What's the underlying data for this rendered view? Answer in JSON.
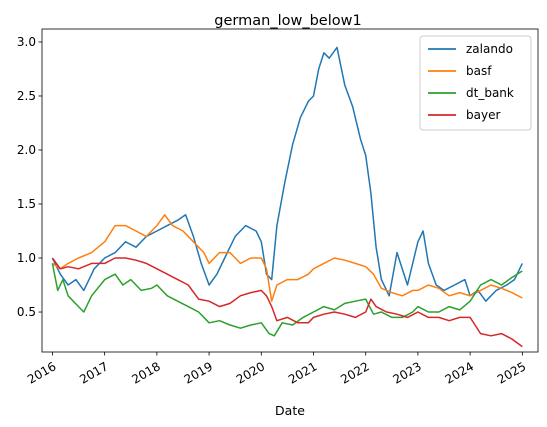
{
  "chart_data": {
    "type": "line",
    "title": "german_low_below1",
    "xlabel": "Date",
    "ylabel": "",
    "xlim": [
      2015.8,
      2025.3
    ],
    "ylim": [
      0.13,
      3.12
    ],
    "x_ticks": [
      2016,
      2017,
      2018,
      2019,
      2020,
      2021,
      2022,
      2023,
      2024,
      2025
    ],
    "x_tick_labels": [
      "2016",
      "2017",
      "2018",
      "2019",
      "2020",
      "2021",
      "2022",
      "2023",
      "2024",
      "2025"
    ],
    "y_ticks": [
      0.5,
      1.0,
      1.5,
      2.0,
      2.5,
      3.0
    ],
    "y_tick_labels": [
      "0.5",
      "1.0",
      "1.5",
      "2.0",
      "2.5",
      "3.0"
    ],
    "grid": false,
    "legend_position": "top-right",
    "series": [
      {
        "name": "zalando",
        "color": "#1f77b4",
        "x": [
          2016.0,
          2016.15,
          2016.3,
          2016.45,
          2016.6,
          2016.8,
          2017.0,
          2017.2,
          2017.4,
          2017.6,
          2017.8,
          2018.0,
          2018.2,
          2018.4,
          2018.55,
          2018.7,
          2018.85,
          2019.0,
          2019.15,
          2019.3,
          2019.5,
          2019.7,
          2019.9,
          2020.0,
          2020.1,
          2020.2,
          2020.3,
          2020.45,
          2020.6,
          2020.75,
          2020.9,
          2021.0,
          2021.1,
          2021.2,
          2021.3,
          2021.45,
          2021.6,
          2021.75,
          2021.9,
          2022.0,
          2022.1,
          2022.2,
          2022.3,
          2022.45,
          2022.6,
          2022.8,
          2023.0,
          2023.1,
          2023.2,
          2023.35,
          2023.5,
          2023.7,
          2023.9,
          2024.0,
          2024.15,
          2024.3,
          2024.5,
          2024.7,
          2024.85,
          2024.95,
          2025.0
        ],
        "values": [
          1.0,
          0.85,
          0.75,
          0.8,
          0.7,
          0.9,
          1.0,
          1.05,
          1.15,
          1.1,
          1.2,
          1.25,
          1.3,
          1.35,
          1.4,
          1.2,
          0.95,
          0.75,
          0.85,
          1.0,
          1.2,
          1.3,
          1.25,
          1.15,
          0.85,
          0.8,
          1.3,
          1.7,
          2.05,
          2.3,
          2.45,
          2.5,
          2.75,
          2.9,
          2.85,
          2.95,
          2.6,
          2.4,
          2.1,
          1.95,
          1.6,
          1.1,
          0.8,
          0.65,
          1.05,
          0.75,
          1.15,
          1.25,
          0.95,
          0.75,
          0.7,
          0.75,
          0.8,
          0.65,
          0.7,
          0.6,
          0.7,
          0.75,
          0.8,
          0.9,
          0.95
        ]
      },
      {
        "name": "basf",
        "color": "#ff7f0e",
        "x": [
          2016.0,
          2016.15,
          2016.3,
          2016.5,
          2016.75,
          2017.0,
          2017.2,
          2017.4,
          2017.6,
          2017.8,
          2018.0,
          2018.15,
          2018.3,
          2018.5,
          2018.7,
          2018.9,
          2019.0,
          2019.2,
          2019.4,
          2019.6,
          2019.8,
          2020.0,
          2020.1,
          2020.2,
          2020.3,
          2020.5,
          2020.7,
          2020.9,
          2021.0,
          2021.2,
          2021.4,
          2021.6,
          2021.8,
          2022.0,
          2022.15,
          2022.3,
          2022.5,
          2022.7,
          2022.9,
          2023.0,
          2023.2,
          2023.4,
          2023.6,
          2023.8,
          2024.0,
          2024.2,
          2024.4,
          2024.6,
          2024.8,
          2025.0
        ],
        "values": [
          0.95,
          0.9,
          0.95,
          1.0,
          1.05,
          1.15,
          1.3,
          1.3,
          1.25,
          1.2,
          1.3,
          1.4,
          1.3,
          1.25,
          1.15,
          1.05,
          0.95,
          1.05,
          1.05,
          0.95,
          1.0,
          1.0,
          0.9,
          0.6,
          0.75,
          0.8,
          0.8,
          0.85,
          0.9,
          0.95,
          1.0,
          0.98,
          0.95,
          0.92,
          0.85,
          0.72,
          0.68,
          0.65,
          0.7,
          0.7,
          0.75,
          0.72,
          0.65,
          0.68,
          0.65,
          0.7,
          0.75,
          0.72,
          0.68,
          0.63
        ]
      },
      {
        "name": "dt_bank",
        "color": "#2ca02c",
        "x": [
          2016.0,
          2016.1,
          2016.2,
          2016.3,
          2016.5,
          2016.6,
          2016.75,
          2017.0,
          2017.2,
          2017.35,
          2017.5,
          2017.7,
          2017.9,
          2018.0,
          2018.2,
          2018.4,
          2018.6,
          2018.8,
          2019.0,
          2019.2,
          2019.4,
          2019.6,
          2019.8,
          2020.0,
          2020.15,
          2020.25,
          2020.4,
          2020.6,
          2020.8,
          2021.0,
          2021.2,
          2021.4,
          2021.6,
          2021.8,
          2022.0,
          2022.15,
          2022.3,
          2022.5,
          2022.7,
          2022.9,
          2023.0,
          2023.2,
          2023.4,
          2023.6,
          2023.8,
          2024.0,
          2024.2,
          2024.4,
          2024.6,
          2024.8,
          2025.0
        ],
        "values": [
          0.95,
          0.7,
          0.8,
          0.65,
          0.55,
          0.5,
          0.65,
          0.8,
          0.85,
          0.75,
          0.8,
          0.7,
          0.72,
          0.75,
          0.65,
          0.6,
          0.55,
          0.5,
          0.4,
          0.42,
          0.38,
          0.35,
          0.38,
          0.4,
          0.3,
          0.28,
          0.4,
          0.38,
          0.45,
          0.5,
          0.55,
          0.52,
          0.58,
          0.6,
          0.62,
          0.48,
          0.5,
          0.45,
          0.45,
          0.5,
          0.55,
          0.5,
          0.5,
          0.55,
          0.52,
          0.6,
          0.75,
          0.8,
          0.75,
          0.82,
          0.88
        ]
      },
      {
        "name": "bayer",
        "color": "#d62728",
        "x": [
          2016.0,
          2016.15,
          2016.3,
          2016.5,
          2016.75,
          2017.0,
          2017.2,
          2017.4,
          2017.6,
          2017.8,
          2018.0,
          2018.2,
          2018.4,
          2018.6,
          2018.8,
          2019.0,
          2019.2,
          2019.4,
          2019.6,
          2019.8,
          2020.0,
          2020.1,
          2020.2,
          2020.3,
          2020.5,
          2020.7,
          2020.9,
          2021.0,
          2021.2,
          2021.4,
          2021.6,
          2021.8,
          2022.0,
          2022.1,
          2022.2,
          2022.4,
          2022.6,
          2022.8,
          2023.0,
          2023.2,
          2023.4,
          2023.6,
          2023.8,
          2024.0,
          2024.2,
          2024.4,
          2024.6,
          2024.8,
          2025.0
        ],
        "values": [
          1.0,
          0.9,
          0.92,
          0.9,
          0.95,
          0.95,
          1.0,
          1.0,
          0.98,
          0.95,
          0.9,
          0.85,
          0.8,
          0.75,
          0.62,
          0.6,
          0.55,
          0.58,
          0.65,
          0.68,
          0.7,
          0.65,
          0.55,
          0.42,
          0.45,
          0.4,
          0.4,
          0.45,
          0.48,
          0.5,
          0.48,
          0.45,
          0.5,
          0.62,
          0.55,
          0.5,
          0.48,
          0.45,
          0.5,
          0.45,
          0.45,
          0.42,
          0.45,
          0.45,
          0.3,
          0.28,
          0.3,
          0.25,
          0.18
        ]
      }
    ]
  }
}
